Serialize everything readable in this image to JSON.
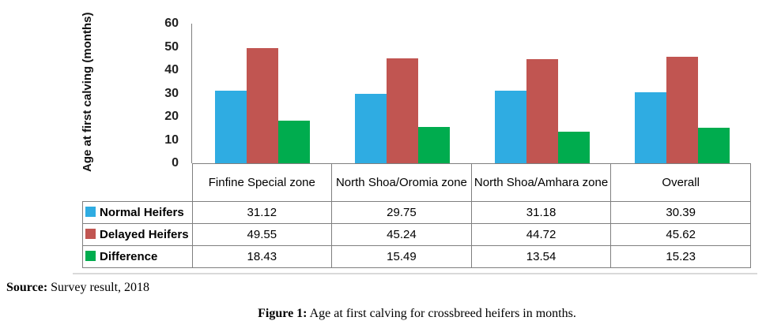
{
  "figure": {
    "source_label": "Source:",
    "source_text": " Survey result, 2018",
    "caption_label": "Figure 1:",
    "caption_text": " Age at first calving for crossbreed heifers in months."
  },
  "colors": {
    "normal_heifers": "#2FACE2",
    "delayed_heifers": "#C15551",
    "difference": "#00AC4E",
    "axis_line": "#7F7F7F",
    "table_border": "#7F7F7F",
    "divider": "#D9D9D9"
  },
  "chart_data": {
    "type": "bar",
    "title": "",
    "xlabel": "",
    "ylabel": "Age at first calving (months)",
    "ylim": [
      0,
      60
    ],
    "yticks": [
      60,
      50,
      40,
      30,
      20,
      10,
      0
    ],
    "grid": false,
    "legend_position": "data-table-left-column",
    "categories": [
      "Finfine Special zone",
      "North Shoa/Oromia zone",
      "North Shoa/Amhara zone",
      "Overall"
    ],
    "series": [
      {
        "name": "Normal Heifers",
        "color": "#2FACE2",
        "values": [
          31.12,
          29.75,
          31.18,
          30.39
        ]
      },
      {
        "name": "Delayed Heifers",
        "color": "#C15551",
        "values": [
          49.55,
          45.24,
          44.72,
          45.62
        ]
      },
      {
        "name": "Difference",
        "color": "#00AC4E",
        "values": [
          18.43,
          15.49,
          13.54,
          15.23
        ]
      }
    ]
  }
}
